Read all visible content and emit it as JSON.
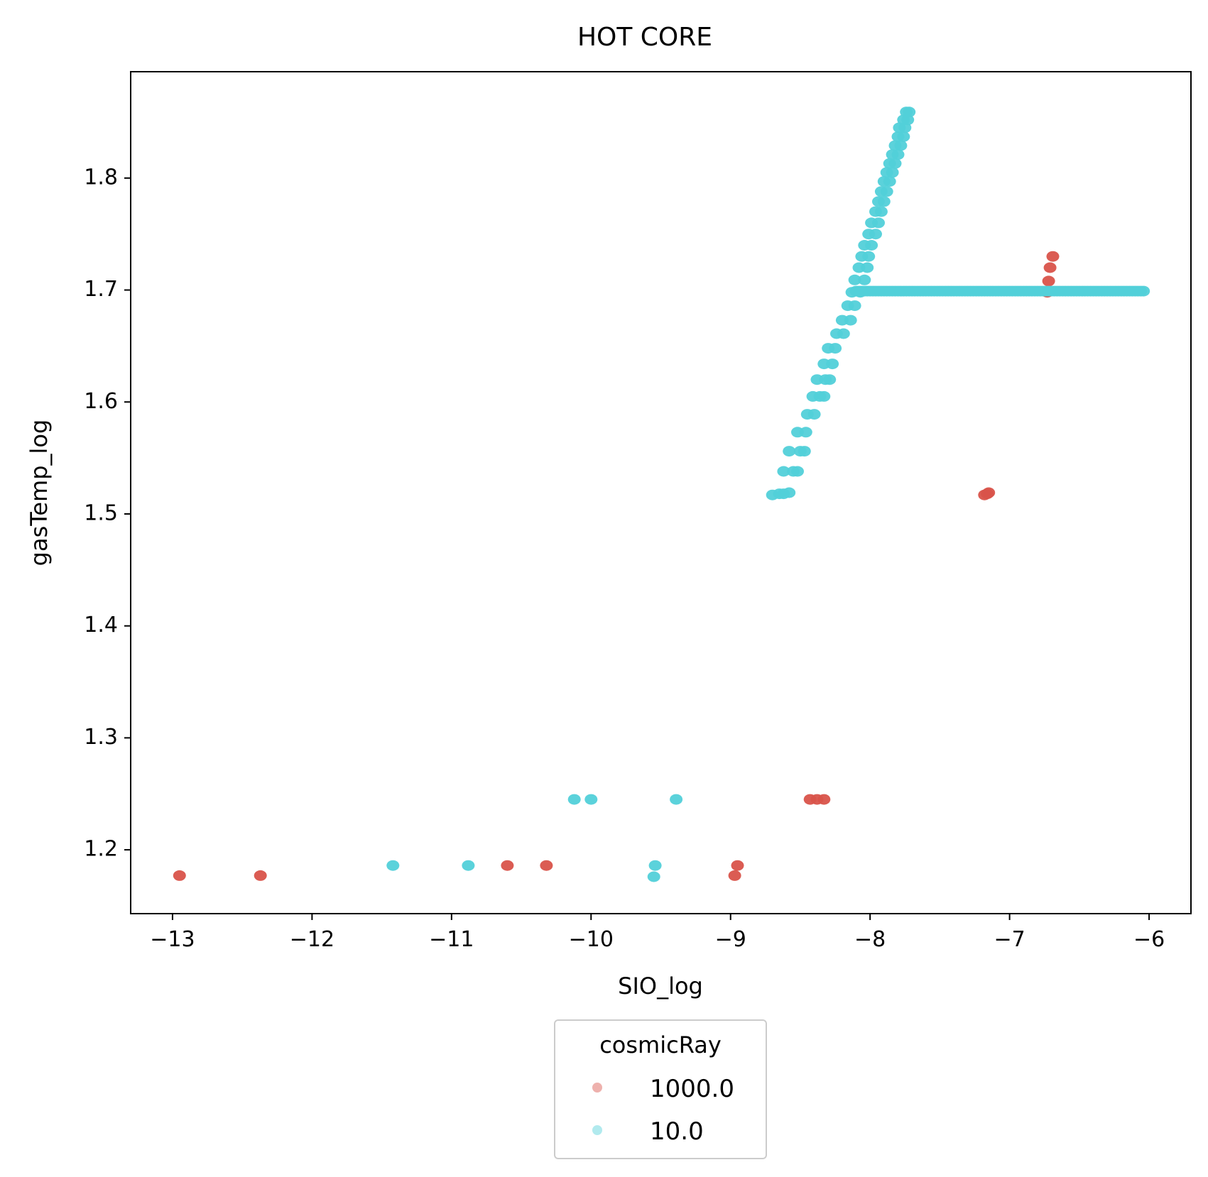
{
  "chart_data": {
    "type": "scatter",
    "title": "HOT CORE",
    "xlabel": "SIO_log",
    "ylabel": "gasTemp_log",
    "xlim": [
      -13.3,
      -5.7
    ],
    "ylim": [
      1.143,
      1.895
    ],
    "xticks": [
      -13,
      -12,
      -11,
      -10,
      -9,
      -8,
      -7,
      -6
    ],
    "xtick_labels": [
      "−13",
      "−12",
      "−11",
      "−10",
      "−9",
      "−8",
      "−7",
      "−6"
    ],
    "yticks": [
      1.2,
      1.3,
      1.4,
      1.5,
      1.6,
      1.7,
      1.8
    ],
    "ytick_labels": [
      "1.2",
      "1.3",
      "1.4",
      "1.5",
      "1.6",
      "1.7",
      "1.8"
    ],
    "grid": false,
    "legend": {
      "title": "cosmicRay",
      "placement": "below-center"
    },
    "series": [
      {
        "name": "1000.0",
        "color": "#d9534a",
        "points": [
          [
            -12.95,
            1.177
          ],
          [
            -12.37,
            1.177
          ],
          [
            -10.6,
            1.186
          ],
          [
            -10.32,
            1.186
          ],
          [
            -8.97,
            1.177
          ],
          [
            -8.95,
            1.186
          ],
          [
            -8.43,
            1.245
          ],
          [
            -8.38,
            1.245
          ],
          [
            -8.33,
            1.245
          ],
          [
            -7.18,
            1.517
          ],
          [
            -7.16,
            1.518
          ],
          [
            -7.15,
            1.519
          ],
          [
            -6.73,
            1.698
          ],
          [
            -6.72,
            1.708
          ],
          [
            -6.71,
            1.72
          ],
          [
            -6.69,
            1.73
          ]
        ]
      },
      {
        "name": "10.0",
        "color": "#52d0d9",
        "points": [
          [
            -11.42,
            1.186
          ],
          [
            -10.88,
            1.186
          ],
          [
            -10.12,
            1.245
          ],
          [
            -10.0,
            1.245
          ],
          [
            -9.55,
            1.176
          ],
          [
            -9.54,
            1.186
          ],
          [
            -9.39,
            1.245
          ],
          [
            -8.7,
            1.517
          ],
          [
            -8.65,
            1.518
          ],
          [
            -8.62,
            1.518
          ],
          [
            -8.58,
            1.519
          ],
          [
            -8.62,
            1.538
          ],
          [
            -8.55,
            1.538
          ],
          [
            -8.52,
            1.538
          ],
          [
            -8.58,
            1.556
          ],
          [
            -8.5,
            1.556
          ],
          [
            -8.47,
            1.556
          ],
          [
            -8.52,
            1.573
          ],
          [
            -8.46,
            1.573
          ],
          [
            -8.45,
            1.589
          ],
          [
            -8.4,
            1.589
          ],
          [
            -8.41,
            1.605
          ],
          [
            -8.36,
            1.605
          ],
          [
            -8.33,
            1.605
          ],
          [
            -8.38,
            1.62
          ],
          [
            -8.32,
            1.62
          ],
          [
            -8.29,
            1.62
          ],
          [
            -8.33,
            1.634
          ],
          [
            -8.27,
            1.634
          ],
          [
            -8.3,
            1.648
          ],
          [
            -8.25,
            1.648
          ],
          [
            -8.24,
            1.661
          ],
          [
            -8.19,
            1.661
          ],
          [
            -8.2,
            1.673
          ],
          [
            -8.14,
            1.673
          ],
          [
            -8.16,
            1.686
          ],
          [
            -8.11,
            1.686
          ],
          [
            -8.13,
            1.698
          ],
          [
            -8.07,
            1.698
          ],
          [
            -8.11,
            1.709
          ],
          [
            -8.04,
            1.709
          ],
          [
            -8.08,
            1.72
          ],
          [
            -8.02,
            1.72
          ],
          [
            -8.06,
            1.73
          ],
          [
            -8.01,
            1.73
          ],
          [
            -8.04,
            1.74
          ],
          [
            -7.99,
            1.74
          ],
          [
            -8.01,
            1.75
          ],
          [
            -7.96,
            1.75
          ],
          [
            -7.99,
            1.76
          ],
          [
            -7.94,
            1.76
          ],
          [
            -7.96,
            1.77
          ],
          [
            -7.92,
            1.77
          ],
          [
            -7.94,
            1.779
          ],
          [
            -7.9,
            1.779
          ],
          [
            -7.92,
            1.788
          ],
          [
            -7.88,
            1.788
          ],
          [
            -7.9,
            1.797
          ],
          [
            -7.86,
            1.797
          ],
          [
            -7.88,
            1.805
          ],
          [
            -7.84,
            1.805
          ],
          [
            -7.86,
            1.813
          ],
          [
            -7.82,
            1.813
          ],
          [
            -7.84,
            1.821
          ],
          [
            -7.8,
            1.821
          ],
          [
            -7.82,
            1.829
          ],
          [
            -7.78,
            1.829
          ],
          [
            -7.8,
            1.837
          ],
          [
            -7.76,
            1.837
          ],
          [
            -7.79,
            1.845
          ],
          [
            -7.75,
            1.845
          ],
          [
            -7.76,
            1.852
          ],
          [
            -7.73,
            1.852
          ],
          [
            -7.74,
            1.859
          ],
          [
            -7.72,
            1.859
          ]
        ],
        "horizontal_band": {
          "y": 1.699,
          "x_from": -8.1,
          "x_to": -6.04,
          "step": 0.02
        }
      }
    ]
  }
}
